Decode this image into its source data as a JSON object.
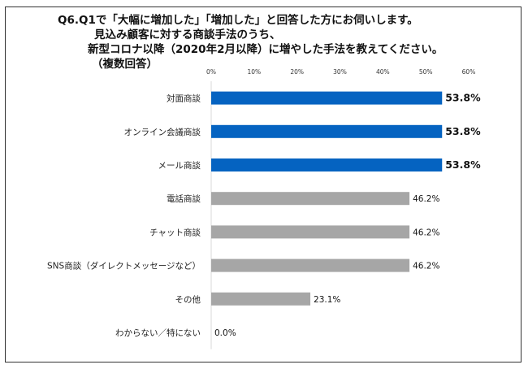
{
  "question": {
    "line1": "Q6.Q1で「大幅に増加した」「増加した」と回答した方にお伺いします。",
    "line2": "見込み顧客に対する商談手法のうち、",
    "line3": "新型コロナ以降（2020年2月以降）に増やした手法を教えてください。",
    "line4": "（複数回答）"
  },
  "chart_data": {
    "type": "bar",
    "orientation": "horizontal",
    "title": "",
    "xlabel": "",
    "ylabel": "",
    "xlim": [
      0,
      60
    ],
    "x_ticks": [
      0,
      10,
      20,
      30,
      40,
      50,
      60
    ],
    "x_tick_labels": [
      "0%",
      "10%",
      "20%",
      "30%",
      "40%",
      "50%",
      "60%"
    ],
    "grid": false,
    "categories": [
      "対面商談",
      "オンライン会議商談",
      "メール商談",
      "電話商談",
      "チャット商談",
      "SNS商談（ダイレクトメッセージなど）",
      "その他",
      "わからない／特にない"
    ],
    "values": [
      53.8,
      53.8,
      53.8,
      46.2,
      46.2,
      46.2,
      23.1,
      0.0
    ],
    "value_labels": [
      "53.8%",
      "53.8%",
      "53.8%",
      "46.2%",
      "46.2%",
      "46.2%",
      "23.1%",
      "0.0%"
    ],
    "bar_colors": [
      "#0563c1",
      "#0563c1",
      "#0563c1",
      "#a6a6a6",
      "#a6a6a6",
      "#a6a6a6",
      "#a6a6a6",
      "#a6a6a6"
    ],
    "bold_labels": [
      true,
      true,
      true,
      false,
      false,
      false,
      false,
      false
    ]
  }
}
